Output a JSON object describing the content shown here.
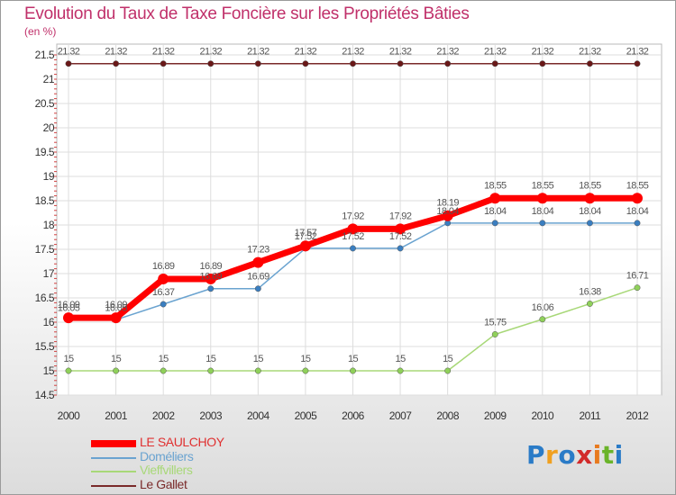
{
  "title": "Evolution du Taux de Taxe Foncière sur les Propriétés Bâties",
  "unit_label": "(en %)",
  "logo": {
    "text": "Proxiti",
    "letters": [
      {
        "ch": "P",
        "color": "#2a7bc7"
      },
      {
        "ch": "r",
        "color": "#f0a020"
      },
      {
        "ch": "o",
        "color": "#2a7bc7"
      },
      {
        "ch": "x",
        "color": "#d22a2a"
      },
      {
        "ch": "i",
        "color": "#e87a1e"
      },
      {
        "ch": "t",
        "color": "#6ab42a"
      },
      {
        "ch": "i",
        "color": "#2a7bc7"
      }
    ]
  },
  "chart_data": {
    "type": "line",
    "title": "Evolution du Taux de Taxe Foncière sur les Propriétés Bâties",
    "ylabel": "(en %)",
    "xlabel": "",
    "x": [
      "2000",
      "2001",
      "2002",
      "2003",
      "2004",
      "2005",
      "2006",
      "2007",
      "2008",
      "2009",
      "2010",
      "2011",
      "2012"
    ],
    "ylim": [
      14.5,
      21.5
    ],
    "yticks": [
      "14.5",
      "15",
      "15.5",
      "16",
      "16.5",
      "17",
      "17.5",
      "18",
      "18.5",
      "19",
      "19.5",
      "20",
      "20.5",
      "21",
      "21.5"
    ],
    "legend_position": "bottom-left",
    "series": [
      {
        "name": "LE SAULCHOY",
        "color": "#ff0000",
        "values": [
          16.09,
          16.09,
          16.89,
          16.89,
          17.23,
          17.57,
          17.92,
          17.92,
          18.19,
          18.55,
          18.55,
          18.55,
          18.55
        ],
        "labels": [
          "16.09",
          "16.09",
          "16.89",
          "16.89",
          "17.23",
          "17.57",
          "17.92",
          "17.92",
          "18.19",
          "18.55",
          "18.55",
          "18.55",
          "18.55"
        ]
      },
      {
        "name": "Doméliers",
        "color": "#6aa3d0",
        "values": [
          16.05,
          16.05,
          16.37,
          16.69,
          16.69,
          17.52,
          17.52,
          17.52,
          18.04,
          18.04,
          18.04,
          18.04,
          18.04
        ],
        "labels": [
          "16.05",
          "16.05",
          "16.37",
          "16.69",
          "16.69",
          "17.52",
          "17.52",
          "17.52",
          "18.04",
          "18.04",
          "18.04",
          "18.04",
          "18.04"
        ]
      },
      {
        "name": "Vieffvillers",
        "color": "#a8d878",
        "values": [
          15,
          15,
          15,
          15,
          15,
          15,
          15,
          15,
          15,
          15.75,
          16.06,
          16.38,
          16.71
        ],
        "labels": [
          "15",
          "15",
          "15",
          "15",
          "15",
          "15",
          "15",
          "15",
          "15",
          "15.75",
          "16.06",
          "16.38",
          "16.71"
        ]
      },
      {
        "name": "Le Gallet",
        "color": "#7a2a2a",
        "values": [
          21.32,
          21.32,
          21.32,
          21.32,
          21.32,
          21.32,
          21.32,
          21.32,
          21.32,
          21.32,
          21.32,
          21.32,
          21.32
        ],
        "labels": [
          "21.32",
          "21.32",
          "21.32",
          "21.32",
          "21.32",
          "21.32",
          "21.32",
          "21.32",
          "21.32",
          "21.32",
          "21.32",
          "21.32",
          "21.32"
        ]
      }
    ]
  }
}
